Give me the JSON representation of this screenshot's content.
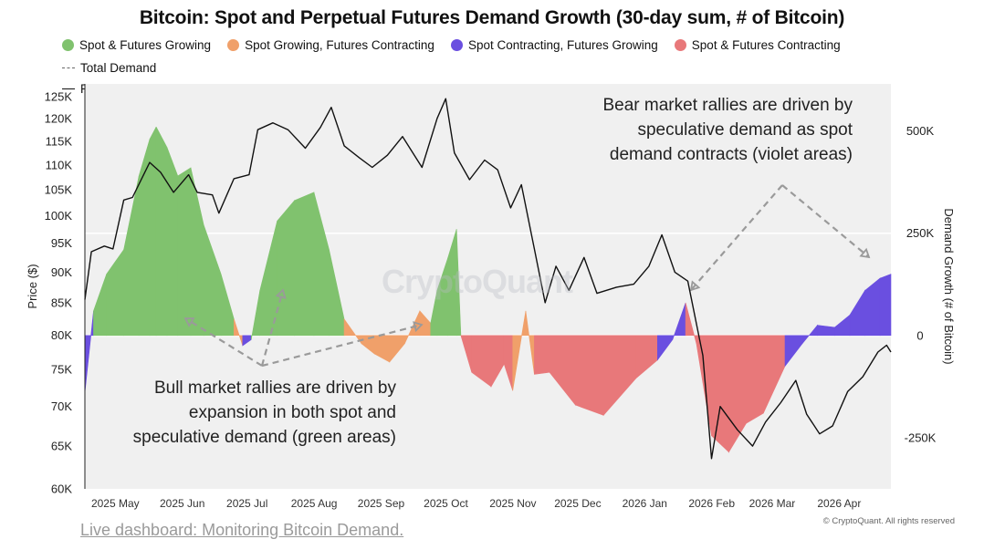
{
  "title": "Bitcoin: Spot and Perpetual Futures Demand Growth (30-day sum, # of Bitcoin)",
  "legend": [
    {
      "label": "Spot & Futures Growing",
      "color": "#80c26e",
      "marker": "dot"
    },
    {
      "label": "Spot Growing, Futures Contracting",
      "color": "#f0a06a",
      "marker": "dot"
    },
    {
      "label": "Spot Contracting, Futures Growing",
      "color": "#6a4fe0",
      "marker": "dot"
    },
    {
      "label": "Spot & Futures Contracting",
      "color": "#e8787a",
      "marker": "dot"
    },
    {
      "label": "Total Demand",
      "color": "#666666",
      "marker": "dash"
    },
    {
      "label": "Price",
      "color": "#111111",
      "marker": "line"
    }
  ],
  "annotations": {
    "bear": [
      "Bear market rallies are driven by",
      "speculative demand as spot",
      "demand contracts (violet areas)"
    ],
    "bull": [
      "Bull market rallies are driven by",
      "expansion in both spot and",
      "speculative demand (green areas)"
    ]
  },
  "watermark": "CryptoQuant",
  "footer_link": "Live dashboard: Monitoring Bitcoin Demand.",
  "copyright": "© CryptoQuant. All rights reserved",
  "chart_data": {
    "type": "area",
    "x_ticks": [
      "2025 May",
      "2025 Jun",
      "2025 Jul",
      "2025 Aug",
      "2025 Sep",
      "2025 Oct",
      "2025 Nov",
      "2025 Dec",
      "2026 Jan",
      "2026 Feb",
      "2026 Mar",
      "2026 Apr"
    ],
    "ylabel_left": "Price ($)",
    "ylabel_right": "Demand Growth (# of Bitcoin)",
    "y_left_ticks": [
      60000,
      65000,
      70000,
      75000,
      80000,
      85000,
      90000,
      95000,
      100000,
      105000,
      110000,
      115000,
      120000,
      125000
    ],
    "y_left_tick_labels": [
      "60K",
      "65K",
      "70K",
      "75K",
      "80K",
      "85K",
      "90K",
      "95K",
      "100K",
      "105K",
      "110K",
      "115K",
      "120K",
      "125K"
    ],
    "y_left_range": [
      60000,
      128000
    ],
    "y_left_scale": "log",
    "y_right_ticks": [
      -250000,
      0,
      250000,
      500000
    ],
    "y_right_tick_labels": [
      "-250K",
      "0",
      "250K",
      "500K"
    ],
    "y_right_range": [
      -375000,
      615000
    ],
    "day0": "2025-04-22",
    "day_end": "2026-04-30",
    "regime_colors": {
      "G": "#80c26e",
      "O": "#f0a06a",
      "V": "#6a4fe0",
      "R": "#e8787a"
    },
    "demand": [
      [
        "2025-04-22",
        -140000,
        "V"
      ],
      [
        "2025-04-26",
        60000,
        "V"
      ],
      [
        "2025-05-02",
        150000,
        "G"
      ],
      [
        "2025-05-10",
        210000,
        "G"
      ],
      [
        "2025-05-17",
        390000,
        "G"
      ],
      [
        "2025-05-22",
        480000,
        "G"
      ],
      [
        "2025-05-25",
        510000,
        "G"
      ],
      [
        "2025-05-30",
        460000,
        "G"
      ],
      [
        "2025-06-04",
        390000,
        "G"
      ],
      [
        "2025-06-10",
        410000,
        "G"
      ],
      [
        "2025-06-16",
        270000,
        "G"
      ],
      [
        "2025-06-24",
        150000,
        "G"
      ],
      [
        "2025-06-30",
        40000,
        "G"
      ],
      [
        "2025-07-04",
        -25000,
        "O"
      ],
      [
        "2025-07-08",
        -10000,
        "V"
      ],
      [
        "2025-07-12",
        110000,
        "G"
      ],
      [
        "2025-07-20",
        280000,
        "G"
      ],
      [
        "2025-07-28",
        330000,
        "G"
      ],
      [
        "2025-08-06",
        350000,
        "G"
      ],
      [
        "2025-08-13",
        210000,
        "G"
      ],
      [
        "2025-08-20",
        40000,
        "G"
      ],
      [
        "2025-08-28",
        -20000,
        "O"
      ],
      [
        "2025-09-03",
        -45000,
        "O"
      ],
      [
        "2025-09-10",
        -65000,
        "O"
      ],
      [
        "2025-09-17",
        -20000,
        "O"
      ],
      [
        "2025-09-24",
        60000,
        "O"
      ],
      [
        "2025-09-29",
        30000,
        "O"
      ],
      [
        "2025-10-02",
        110000,
        "G"
      ],
      [
        "2025-10-07",
        190000,
        "G"
      ],
      [
        "2025-10-11",
        260000,
        "G"
      ],
      [
        "2025-10-13",
        0,
        "G"
      ],
      [
        "2025-10-18",
        -90000,
        "R"
      ],
      [
        "2025-10-27",
        -125000,
        "R"
      ],
      [
        "2025-11-02",
        -70000,
        "R"
      ],
      [
        "2025-11-06",
        -135000,
        "R"
      ],
      [
        "2025-11-12",
        60000,
        "O"
      ],
      [
        "2025-11-16",
        -95000,
        "O"
      ],
      [
        "2025-11-23",
        -90000,
        "R"
      ],
      [
        "2025-12-05",
        -170000,
        "R"
      ],
      [
        "2025-12-18",
        -195000,
        "R"
      ],
      [
        "2026-01-02",
        -105000,
        "R"
      ],
      [
        "2026-01-12",
        -60000,
        "R"
      ],
      [
        "2026-01-19",
        -10000,
        "V"
      ],
      [
        "2026-01-25",
        80000,
        "V"
      ],
      [
        "2026-01-30",
        -20000,
        "R"
      ],
      [
        "2026-02-06",
        -245000,
        "R"
      ],
      [
        "2026-02-14",
        -285000,
        "R"
      ],
      [
        "2026-02-22",
        -215000,
        "R"
      ],
      [
        "2026-03-02",
        -190000,
        "R"
      ],
      [
        "2026-03-12",
        -75000,
        "R"
      ],
      [
        "2026-03-20",
        -20000,
        "V"
      ],
      [
        "2026-03-27",
        25000,
        "V"
      ],
      [
        "2026-04-04",
        20000,
        "V"
      ],
      [
        "2026-04-11",
        50000,
        "V"
      ],
      [
        "2026-04-18",
        110000,
        "V"
      ],
      [
        "2026-04-25",
        140000,
        "V"
      ],
      [
        "2026-04-30",
        150000,
        "V"
      ]
    ],
    "price": [
      [
        "2025-04-22",
        85500
      ],
      [
        "2025-04-25",
        93500
      ],
      [
        "2025-05-01",
        94500
      ],
      [
        "2025-05-05",
        94000
      ],
      [
        "2025-05-10",
        103000
      ],
      [
        "2025-05-14",
        103500
      ],
      [
        "2025-05-22",
        110500
      ],
      [
        "2025-05-27",
        108500
      ],
      [
        "2025-06-02",
        104500
      ],
      [
        "2025-06-09",
        108000
      ],
      [
        "2025-06-13",
        104500
      ],
      [
        "2025-06-20",
        104000
      ],
      [
        "2025-06-23",
        100500
      ],
      [
        "2025-06-30",
        107200
      ],
      [
        "2025-07-07",
        108000
      ],
      [
        "2025-07-11",
        117500
      ],
      [
        "2025-07-18",
        119000
      ],
      [
        "2025-07-25",
        117500
      ],
      [
        "2025-08-02",
        113500
      ],
      [
        "2025-08-09",
        118000
      ],
      [
        "2025-08-14",
        122500
      ],
      [
        "2025-08-20",
        114000
      ],
      [
        "2025-08-27",
        111500
      ],
      [
        "2025-09-02",
        109500
      ],
      [
        "2025-09-09",
        112000
      ],
      [
        "2025-09-16",
        116000
      ],
      [
        "2025-09-25",
        109500
      ],
      [
        "2025-10-02",
        120000
      ],
      [
        "2025-10-06",
        124500
      ],
      [
        "2025-10-10",
        112500
      ],
      [
        "2025-10-17",
        107000
      ],
      [
        "2025-10-24",
        111000
      ],
      [
        "2025-10-30",
        109000
      ],
      [
        "2025-11-05",
        101500
      ],
      [
        "2025-11-10",
        106000
      ],
      [
        "2025-11-16",
        94000
      ],
      [
        "2025-11-21",
        85000
      ],
      [
        "2025-11-26",
        91000
      ],
      [
        "2025-12-02",
        87000
      ],
      [
        "2025-12-09",
        92500
      ],
      [
        "2025-12-15",
        86500
      ],
      [
        "2025-12-24",
        87500
      ],
      [
        "2026-01-01",
        88000
      ],
      [
        "2026-01-08",
        91000
      ],
      [
        "2026-01-14",
        96500
      ],
      [
        "2026-01-20",
        90000
      ],
      [
        "2026-01-26",
        88500
      ],
      [
        "2026-02-02",
        77000
      ],
      [
        "2026-02-06",
        63500
      ],
      [
        "2026-02-10",
        70000
      ],
      [
        "2026-02-18",
        67000
      ],
      [
        "2026-02-25",
        65000
      ],
      [
        "2026-03-03",
        68000
      ],
      [
        "2026-03-10",
        70500
      ],
      [
        "2026-03-17",
        73500
      ],
      [
        "2026-03-22",
        69000
      ],
      [
        "2026-03-28",
        66500
      ],
      [
        "2026-04-03",
        67500
      ],
      [
        "2026-04-10",
        72000
      ],
      [
        "2026-04-17",
        74000
      ],
      [
        "2026-04-24",
        77500
      ],
      [
        "2026-04-28",
        78500
      ],
      [
        "2026-04-30",
        77500
      ]
    ]
  }
}
